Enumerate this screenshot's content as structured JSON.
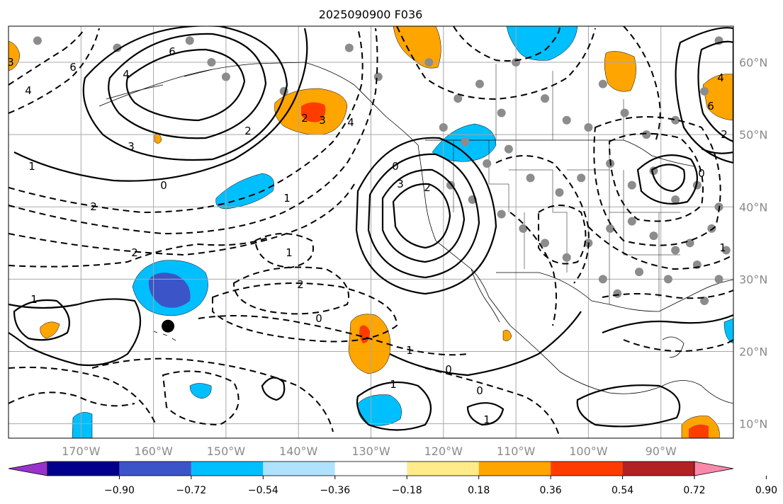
{
  "title": "2025090900 F036",
  "map": {
    "lon_labels": [
      "170°W",
      "160°W",
      "150°W",
      "140°W",
      "130°W",
      "120°W",
      "110°W",
      "100°W",
      "90°W"
    ],
    "lat_labels": [
      "60°N",
      "50°N",
      "40°N",
      "30°N",
      "20°N",
      "10°N"
    ],
    "lon_range": [
      -180,
      -80
    ],
    "lat_range": [
      8,
      65
    ],
    "marker": {
      "lon": -158,
      "lat": 23.5
    }
  },
  "colorbar": {
    "ticks": [
      "−0.90",
      "−0.72",
      "−0.54",
      "−0.36",
      "−0.18",
      "0.18",
      "0.36",
      "0.54",
      "0.72",
      "0.90"
    ],
    "levels": [
      -0.9,
      -0.72,
      -0.54,
      -0.36,
      -0.18,
      0.18,
      0.36,
      0.54,
      0.72,
      0.9
    ],
    "colors": [
      "#9932cc",
      "#00008b",
      "#3b55c8",
      "#00bfff",
      "#aee2ff",
      "#ffffff",
      "#ffeb8a",
      "#ffa500",
      "#ff3c00",
      "#b22222",
      "#ff88aa"
    ]
  },
  "contour_labels": [
    "6",
    "4",
    "3",
    "2",
    "1",
    "0",
    "1",
    "2",
    "3",
    "6",
    "4",
    "2",
    "0",
    "1",
    "2",
    "4",
    "3",
    "2",
    "0",
    "1",
    "2",
    "0",
    "1",
    "1",
    "1",
    "0",
    "0",
    "2",
    "1",
    "6",
    "4",
    "3"
  ]
}
